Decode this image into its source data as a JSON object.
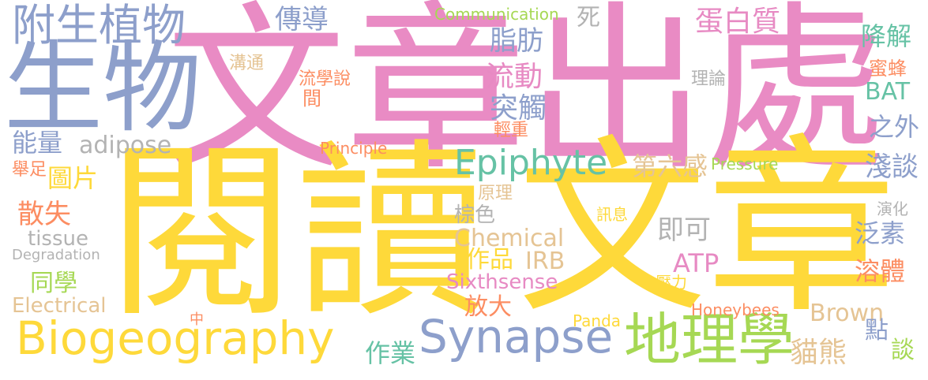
{
  "words": [
    {
      "text": "文章出處",
      "color": "#e98bc4"
    },
    {
      "text": "閱讀",
      "color": "#fed93a"
    },
    {
      "text": "文章",
      "color": "#fed93a"
    },
    {
      "text": "生物",
      "color": "#8d9fcb"
    },
    {
      "text": "附生植物",
      "color": "#8d9fcb"
    },
    {
      "text": "Biogeography",
      "color": "#fed93a"
    },
    {
      "text": "Synapse",
      "color": "#8d9fcb"
    },
    {
      "text": "地理學",
      "color": "#a6d854"
    },
    {
      "text": "Epiphyte",
      "color": "#66c2a5"
    },
    {
      "text": "Communication",
      "color": "#a6d854"
    },
    {
      "text": "傳導",
      "color": "#8d9fcb"
    },
    {
      "text": "死",
      "color": "#b3b3b3"
    },
    {
      "text": "蛋白質",
      "color": "#e78ac3"
    },
    {
      "text": "降解",
      "color": "#66c2a5"
    },
    {
      "text": "脂肪",
      "color": "#8d9fcb"
    },
    {
      "text": "溝通",
      "color": "#e5c494"
    },
    {
      "text": "流學說",
      "color": "#fc8d62"
    },
    {
      "text": "間",
      "color": "#fc8d62"
    },
    {
      "text": "流動",
      "color": "#e78ac3"
    },
    {
      "text": "理論",
      "color": "#b3b3b3"
    },
    {
      "text": "蜜蜂",
      "color": "#fc8d62"
    },
    {
      "text": "BAT",
      "color": "#66c2a5"
    },
    {
      "text": "突觸",
      "color": "#8d9fcb"
    },
    {
      "text": "輕重",
      "color": "#fc8d62"
    },
    {
      "text": "之外",
      "color": "#8d9fcb"
    },
    {
      "text": "能量",
      "color": "#8d9fcb"
    },
    {
      "text": "adipose",
      "color": "#b3b3b3"
    },
    {
      "text": "Principle",
      "color": "#fc8d62"
    },
    {
      "text": "舉足",
      "color": "#fc8d62"
    },
    {
      "text": "圖片",
      "color": "#fed93a"
    },
    {
      "text": "第六感",
      "color": "#e5c494"
    },
    {
      "text": "Pressure",
      "color": "#a6d854"
    },
    {
      "text": "淺談",
      "color": "#8d9fcb"
    },
    {
      "text": "原理",
      "color": "#e5c494"
    },
    {
      "text": "散失",
      "color": "#fc8d62"
    },
    {
      "text": "棕色",
      "color": "#b3b3b3"
    },
    {
      "text": "訊息",
      "color": "#fed93a"
    },
    {
      "text": "演化",
      "color": "#b3b3b3"
    },
    {
      "text": "tissue",
      "color": "#b3b3b3"
    },
    {
      "text": "Chemical",
      "color": "#e5c494"
    },
    {
      "text": "即可",
      "color": "#b3b3b3"
    },
    {
      "text": "泛素",
      "color": "#8d9fcb"
    },
    {
      "text": "Degradation",
      "color": "#b3b3b3"
    },
    {
      "text": "作品",
      "color": "#fed93a"
    },
    {
      "text": "IRB",
      "color": "#e5c494"
    },
    {
      "text": "ATP",
      "color": "#e78ac3"
    },
    {
      "text": "溶體",
      "color": "#fc8d62"
    },
    {
      "text": "同學",
      "color": "#a6d854"
    },
    {
      "text": "Sixthsense",
      "color": "#e78ac3"
    },
    {
      "text": "壓力",
      "color": "#fed93a"
    },
    {
      "text": "Electrical",
      "color": "#e5c494"
    },
    {
      "text": "放大",
      "color": "#fc8d62"
    },
    {
      "text": "Honeybees",
      "color": "#fc8d62"
    },
    {
      "text": "Brown",
      "color": "#e5c494"
    },
    {
      "text": "中",
      "color": "#fc8d62"
    },
    {
      "text": "Panda",
      "color": "#fed93a"
    },
    {
      "text": "點",
      "color": "#8d9fcb"
    },
    {
      "text": "談",
      "color": "#a6d854"
    },
    {
      "text": "作業",
      "color": "#66c2a5"
    },
    {
      "text": "貓熊",
      "color": "#e5c494"
    }
  ]
}
